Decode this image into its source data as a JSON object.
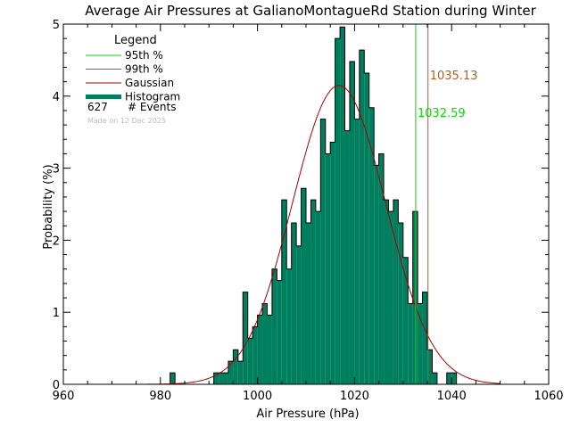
{
  "chart_data": {
    "type": "bar",
    "title": "Average Air Pressures at GalianoMontagueRd Station during Winter",
    "xlabel": "Air Pressure (hPa)",
    "ylabel": "Probability (%)",
    "xlim": [
      960,
      1060
    ],
    "ylim": [
      0,
      5
    ],
    "xticks": [
      960,
      980,
      1000,
      1020,
      1040,
      1060
    ],
    "yticks": [
      0,
      1,
      2,
      3,
      4,
      5
    ],
    "bin_width": 1,
    "legend": {
      "title": "Legend",
      "placement": "top-left",
      "items": [
        {
          "label": "95th %",
          "color": "#00dd00",
          "kind": "line"
        },
        {
          "label": "99th %",
          "color": "#b06020",
          "kind": "line"
        },
        {
          "label": "Gaussian",
          "color": "#aa0000",
          "kind": "line"
        },
        {
          "label": "Histogram",
          "color": "#007f5f",
          "kind": "thick"
        }
      ],
      "events_count": "627",
      "events_label": "# Events",
      "made_on": "Made on 12 Dec 2025"
    },
    "percentiles": [
      {
        "name": "95th %",
        "value": 1032.59,
        "label": "1032.59",
        "color": "#00dd00"
      },
      {
        "name": "99th %",
        "value": 1035.13,
        "label": "1035.13",
        "color": "#b06020"
      }
    ],
    "gaussian": {
      "mean": 1016.8,
      "sd": 9.6,
      "peak": 4.15,
      "color": "#aa0000"
    },
    "histogram": {
      "color": "#007f5f",
      "bins": [
        [
          982,
          0.16
        ],
        [
          991,
          0.16
        ],
        [
          992,
          0.16
        ],
        [
          993,
          0.16
        ],
        [
          994,
          0.32
        ],
        [
          995,
          0.48
        ],
        [
          996,
          0.32
        ],
        [
          997,
          1.28
        ],
        [
          998,
          0.64
        ],
        [
          999,
          0.8
        ],
        [
          1000,
          0.96
        ],
        [
          1001,
          1.12
        ],
        [
          1002,
          0.96
        ],
        [
          1003,
          1.6
        ],
        [
          1004,
          1.44
        ],
        [
          1005,
          2.56
        ],
        [
          1006,
          1.6
        ],
        [
          1007,
          2.24
        ],
        [
          1008,
          1.92
        ],
        [
          1009,
          2.72
        ],
        [
          1010,
          2.24
        ],
        [
          1011,
          2.56
        ],
        [
          1012,
          2.4
        ],
        [
          1013,
          3.68
        ],
        [
          1014,
          3.2
        ],
        [
          1015,
          3.36
        ],
        [
          1016,
          4.8
        ],
        [
          1017,
          4.96
        ],
        [
          1018,
          3.52
        ],
        [
          1019,
          4.48
        ],
        [
          1020,
          3.68
        ],
        [
          1021,
          4.64
        ],
        [
          1022,
          4.32
        ],
        [
          1023,
          3.84
        ],
        [
          1024,
          3.04
        ],
        [
          1025,
          3.2
        ],
        [
          1026,
          2.56
        ],
        [
          1027,
          2.4
        ],
        [
          1028,
          2.56
        ],
        [
          1029,
          2.24
        ],
        [
          1030,
          1.76
        ],
        [
          1031,
          1.12
        ],
        [
          1032,
          2.4
        ],
        [
          1033,
          1.12
        ],
        [
          1034,
          1.28
        ],
        [
          1035,
          0.48
        ],
        [
          1036,
          0.16
        ],
        [
          1039,
          0.16
        ],
        [
          1040,
          0.16
        ]
      ]
    }
  }
}
